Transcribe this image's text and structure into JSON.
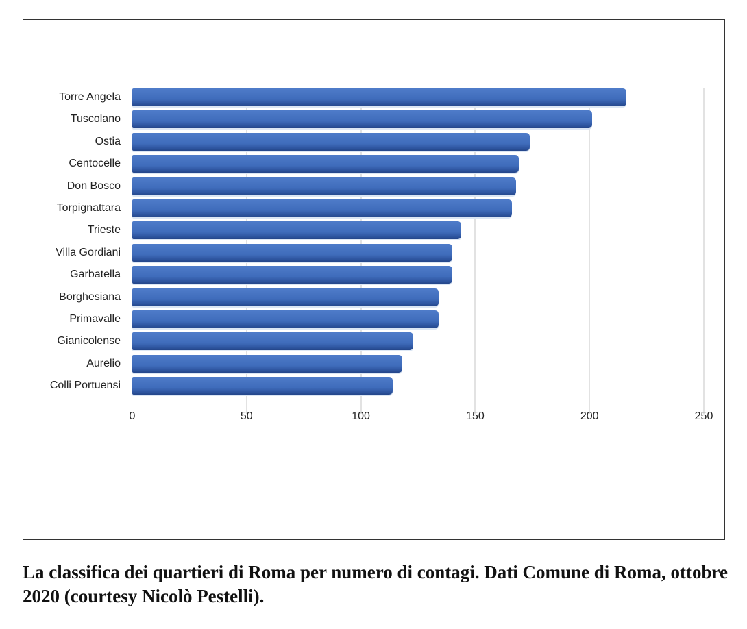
{
  "chart_data": {
    "type": "bar",
    "orientation": "horizontal",
    "title": "",
    "xlabel": "",
    "ylabel": "",
    "xlim": [
      0,
      250
    ],
    "x_ticks": [
      "0",
      "50",
      "100",
      "150",
      "200",
      "250"
    ],
    "grid": true,
    "legend": null,
    "bar_color": "#3f6cbb",
    "categories": [
      "Torre Angela",
      "Tuscolano",
      "Ostia",
      "Centocelle",
      "Don Bosco",
      "Torpignattara",
      "Trieste",
      "Villa Gordiani",
      "Garbatella",
      "Borghesiana",
      "Primavalle",
      "Gianicolense",
      "Aurelio",
      "Colli Portuensi"
    ],
    "values": [
      216,
      201,
      174,
      169,
      168,
      166,
      144,
      140,
      140,
      134,
      134,
      123,
      118,
      114
    ]
  },
  "caption": "La classifica dei quartieri di Roma per numero di contagi. Dati Comune di Roma, ottobre 2020 (courtesy Nicolò Pestelli)."
}
